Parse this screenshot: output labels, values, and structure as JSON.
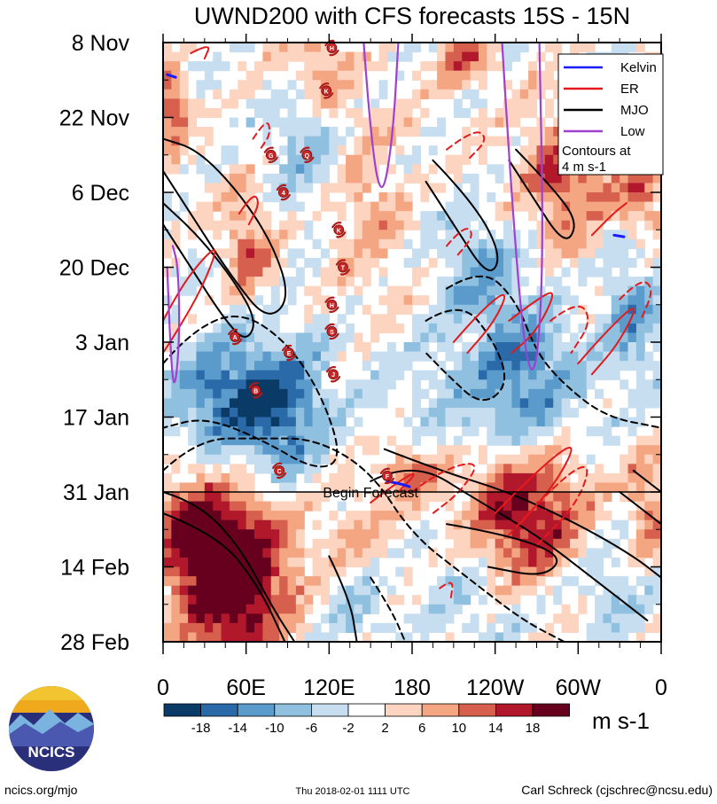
{
  "chart_data": {
    "type": "heatmap",
    "title": "UWND200 with CFS forecasts  15S - 15N",
    "x_tick_labels": [
      "0",
      "60E",
      "120E",
      "180",
      "120W",
      "60W",
      "0"
    ],
    "x_ticks_deg": [
      0,
      60,
      120,
      180,
      240,
      300,
      360
    ],
    "x_range_deg": [
      0,
      360
    ],
    "y_tick_labels": [
      "8 Nov",
      "22 Nov",
      "6 Dec",
      "20 Dec",
      "3 Jan",
      "17 Jan",
      "31 Jan",
      "14 Feb",
      "28 Feb"
    ],
    "y_range_days": [
      0,
      112
    ],
    "units": "m s-1",
    "colorbar_levels": [
      "-18",
      "-14",
      "-10",
      "-6",
      "-2",
      "2",
      "6",
      "10",
      "14",
      "18"
    ],
    "colorbar_colors": [
      "#0a3a66",
      "#2a6aa8",
      "#5b9bcc",
      "#8fc0e0",
      "#c6def0",
      "#ffffff",
      "#fcd4c0",
      "#f4a582",
      "#d6604d",
      "#b2182b",
      "#67001f"
    ],
    "forecast_start_day": 84,
    "forecast_label": "Begin Forecast",
    "legend": {
      "items": [
        {
          "name": "Kelvin",
          "color": "#1a1aff"
        },
        {
          "name": "ER",
          "color": "#e31a1c"
        },
        {
          "name": "MJO",
          "color": "#000000"
        },
        {
          "name": "Low",
          "color": "#a040d0"
        }
      ],
      "note_line1": "Contours at",
      "note_line2": "4 m s-1"
    },
    "anomaly_blobs": [
      {
        "lon": 5,
        "day": 12,
        "amp": 14,
        "slon": 10,
        "sday": 5
      },
      {
        "lon": 110,
        "day": 4,
        "amp": 10,
        "slon": 18,
        "sday": 6
      },
      {
        "lon": 220,
        "day": 3,
        "amp": 12,
        "slon": 14,
        "sday": 4
      },
      {
        "lon": 290,
        "day": 25,
        "amp": 14,
        "slon": 22,
        "sday": 9
      },
      {
        "lon": 345,
        "day": 28,
        "amp": 12,
        "slon": 12,
        "sday": 6
      },
      {
        "lon": 62,
        "day": 38,
        "amp": 10,
        "slon": 14,
        "sday": 8
      },
      {
        "lon": 150,
        "day": 30,
        "amp": 7,
        "slon": 20,
        "sday": 12
      },
      {
        "lon": 40,
        "day": 66,
        "amp": -14,
        "slon": 26,
        "sday": 8
      },
      {
        "lon": 85,
        "day": 68,
        "amp": -16,
        "slon": 22,
        "sday": 9
      },
      {
        "lon": 260,
        "day": 62,
        "amp": -14,
        "slon": 28,
        "sday": 9
      },
      {
        "lon": 230,
        "day": 42,
        "amp": -9,
        "slon": 22,
        "sday": 7
      },
      {
        "lon": 340,
        "day": 52,
        "amp": -10,
        "slon": 14,
        "sday": 10
      },
      {
        "lon": 100,
        "day": 18,
        "amp": -7,
        "slon": 18,
        "sday": 10
      },
      {
        "lon": 190,
        "day": 72,
        "amp": -5,
        "slon": 30,
        "sday": 10
      },
      {
        "lon": 25,
        "day": 92,
        "amp": 16,
        "slon": 26,
        "sday": 8
      },
      {
        "lon": 60,
        "day": 98,
        "amp": 18,
        "slon": 26,
        "sday": 9
      },
      {
        "lon": 45,
        "day": 108,
        "amp": 12,
        "slon": 22,
        "sday": 7
      },
      {
        "lon": 260,
        "day": 88,
        "amp": 20,
        "slon": 30,
        "sday": 8
      },
      {
        "lon": 180,
        "day": 80,
        "amp": 12,
        "slon": 20,
        "sday": 5
      },
      {
        "lon": 140,
        "day": 92,
        "amp": 6,
        "slon": 18,
        "sday": 6
      },
      {
        "lon": 350,
        "day": 86,
        "amp": 10,
        "slon": 12,
        "sday": 8
      },
      {
        "lon": 220,
        "day": 102,
        "amp": -5,
        "slon": 20,
        "sday": 8
      },
      {
        "lon": 325,
        "day": 100,
        "amp": -6,
        "slon": 16,
        "sday": 8
      },
      {
        "lon": 140,
        "day": 106,
        "amp": -5,
        "slon": 18,
        "sday": 6
      }
    ],
    "mjo_contours": [
      {
        "style": "solid",
        "points": [
          [
            0,
            24
          ],
          [
            20,
            32
          ],
          [
            50,
            44
          ],
          [
            75,
            52
          ],
          [
            92,
            48
          ],
          [
            80,
            38
          ],
          [
            55,
            28
          ],
          [
            25,
            20
          ],
          [
            0,
            18
          ]
        ]
      },
      {
        "style": "solid",
        "points": [
          [
            0,
            34
          ],
          [
            20,
            42
          ],
          [
            45,
            52
          ],
          [
            60,
            56
          ],
          [
            68,
            52
          ],
          [
            50,
            44
          ],
          [
            25,
            36
          ],
          [
            0,
            30
          ]
        ]
      },
      {
        "style": "dashed",
        "points": [
          [
            0,
            60
          ],
          [
            20,
            54
          ],
          [
            55,
            50
          ],
          [
            90,
            56
          ],
          [
            115,
            66
          ],
          [
            130,
            78
          ],
          [
            110,
            80
          ],
          [
            70,
            74
          ],
          [
            30,
            70
          ],
          [
            0,
            72
          ]
        ]
      },
      {
        "style": "dashed",
        "points": [
          [
            0,
            80
          ],
          [
            25,
            74
          ],
          [
            70,
            74
          ],
          [
            110,
            74
          ],
          [
            150,
            80
          ],
          [
            180,
            92
          ],
          [
            220,
            100
          ],
          [
            260,
            108
          ],
          [
            290,
            112
          ]
        ]
      },
      {
        "style": "solid",
        "points": [
          [
            0,
            84
          ],
          [
            25,
            86
          ],
          [
            55,
            94
          ],
          [
            80,
            106
          ],
          [
            95,
            112
          ]
        ]
      },
      {
        "style": "solid",
        "points": [
          [
            0,
            88
          ],
          [
            40,
            92
          ],
          [
            70,
            102
          ],
          [
            88,
            112
          ]
        ]
      },
      {
        "style": "solid",
        "points": [
          [
            290,
            16
          ],
          [
            330,
            20
          ],
          [
            360,
            24
          ]
        ]
      },
      {
        "style": "solid",
        "points": [
          [
            195,
            22
          ],
          [
            225,
            30
          ],
          [
            245,
            40
          ],
          [
            235,
            44
          ],
          [
            210,
            34
          ],
          [
            190,
            26
          ]
        ]
      },
      {
        "style": "solid",
        "points": [
          [
            255,
            20
          ],
          [
            285,
            28
          ],
          [
            300,
            34
          ],
          [
            290,
            38
          ],
          [
            265,
            28
          ],
          [
            250,
            22
          ]
        ]
      },
      {
        "style": "dashed",
        "points": [
          [
            205,
            46
          ],
          [
            230,
            42
          ],
          [
            255,
            48
          ],
          [
            270,
            58
          ],
          [
            290,
            64
          ],
          [
            320,
            70
          ],
          [
            360,
            72
          ]
        ]
      },
      {
        "style": "dashed",
        "points": [
          [
            190,
            52
          ],
          [
            215,
            48
          ],
          [
            240,
            56
          ],
          [
            250,
            64
          ],
          [
            230,
            68
          ],
          [
            205,
            62
          ],
          [
            190,
            58
          ]
        ]
      },
      {
        "style": "solid",
        "points": [
          [
            160,
            76
          ],
          [
            200,
            80
          ],
          [
            250,
            84
          ],
          [
            300,
            90
          ],
          [
            340,
            96
          ],
          [
            360,
            100
          ]
        ]
      },
      {
        "style": "solid",
        "points": [
          [
            150,
            82
          ],
          [
            180,
            78
          ],
          [
            230,
            86
          ],
          [
            270,
            92
          ],
          [
            310,
            100
          ],
          [
            350,
            108
          ]
        ]
      },
      {
        "style": "solid",
        "points": [
          [
            205,
            90
          ],
          [
            250,
            92
          ],
          [
            290,
            96
          ],
          [
            275,
            100
          ],
          [
            235,
            98
          ]
        ]
      },
      {
        "style": "solid",
        "points": [
          [
            120,
            96
          ],
          [
            135,
            104
          ],
          [
            140,
            112
          ]
        ]
      },
      {
        "style": "dashed",
        "points": [
          [
            150,
            100
          ],
          [
            165,
            106
          ],
          [
            175,
            112
          ]
        ]
      },
      {
        "style": "solid",
        "points": [
          [
            340,
            80
          ],
          [
            360,
            84
          ]
        ]
      },
      {
        "style": "solid",
        "points": [
          [
            330,
            84
          ],
          [
            360,
            90
          ]
        ]
      }
    ],
    "er_contours": [
      {
        "style": "solid",
        "points": [
          [
            0,
            52
          ],
          [
            12,
            46
          ],
          [
            30,
            40
          ],
          [
            40,
            38
          ],
          [
            28,
            46
          ],
          [
            10,
            54
          ],
          [
            0,
            58
          ]
        ]
      },
      {
        "style": "solid",
        "points": [
          [
            55,
            32
          ],
          [
            65,
            28
          ],
          [
            70,
            30
          ],
          [
            62,
            34
          ]
        ]
      },
      {
        "style": "dashed",
        "points": [
          [
            65,
            18
          ],
          [
            75,
            14
          ],
          [
            78,
            17
          ],
          [
            70,
            20
          ]
        ]
      },
      {
        "style": "solid",
        "points": [
          [
            150,
            86
          ],
          [
            170,
            82
          ],
          [
            185,
            80
          ],
          [
            170,
            84
          ]
        ]
      },
      {
        "style": "dashed",
        "points": [
          [
            180,
            84
          ],
          [
            200,
            80
          ],
          [
            230,
            78
          ],
          [
            215,
            84
          ],
          [
            195,
            88
          ]
        ]
      },
      {
        "style": "solid",
        "points": [
          [
            210,
            56
          ],
          [
            230,
            50
          ],
          [
            250,
            46
          ],
          [
            240,
            52
          ],
          [
            220,
            58
          ]
        ]
      },
      {
        "style": "solid",
        "points": [
          [
            250,
            52
          ],
          [
            270,
            48
          ],
          [
            285,
            46
          ],
          [
            270,
            54
          ],
          [
            252,
            58
          ]
        ]
      },
      {
        "style": "dashed",
        "points": [
          [
            280,
            52
          ],
          [
            300,
            48
          ],
          [
            310,
            52
          ],
          [
            295,
            58
          ]
        ]
      },
      {
        "style": "solid",
        "points": [
          [
            300,
            60
          ],
          [
            320,
            54
          ],
          [
            345,
            48
          ],
          [
            330,
            56
          ],
          [
            310,
            62
          ]
        ]
      },
      {
        "style": "dashed",
        "points": [
          [
            330,
            48
          ],
          [
            345,
            44
          ],
          [
            355,
            46
          ],
          [
            345,
            52
          ]
        ]
      },
      {
        "style": "solid",
        "points": [
          [
            240,
            88
          ],
          [
            270,
            80
          ],
          [
            300,
            74
          ],
          [
            285,
            82
          ],
          [
            258,
            90
          ]
        ]
      },
      {
        "style": "dashed",
        "points": [
          [
            250,
            92
          ],
          [
            285,
            82
          ],
          [
            310,
            78
          ],
          [
            300,
            86
          ],
          [
            270,
            94
          ]
        ]
      },
      {
        "style": "dashed",
        "points": [
          [
            205,
            20
          ],
          [
            225,
            16
          ],
          [
            235,
            18
          ],
          [
            220,
            22
          ]
        ]
      },
      {
        "style": "dashed",
        "points": [
          [
            305,
            24
          ],
          [
            320,
            20
          ],
          [
            318,
            24
          ]
        ]
      },
      {
        "style": "solid",
        "points": [
          [
            310,
            36
          ],
          [
            325,
            32
          ],
          [
            335,
            30
          ]
        ]
      },
      {
        "style": "dashed",
        "points": [
          [
            205,
            38
          ],
          [
            218,
            34
          ],
          [
            225,
            36
          ],
          [
            212,
            40
          ]
        ]
      },
      {
        "style": "dashed",
        "points": [
          [
            200,
            102
          ],
          [
            210,
            100
          ],
          [
            208,
            104
          ]
        ]
      },
      {
        "style": "solid",
        "points": [
          [
            20,
            2
          ],
          [
            35,
            0
          ],
          [
            30,
            3
          ]
        ]
      }
    ],
    "kelvin_segments": [
      {
        "points": [
          [
            3,
            6
          ],
          [
            9,
            6.5
          ]
        ]
      },
      {
        "points": [
          [
            326,
            36
          ],
          [
            333,
            36.3
          ]
        ]
      },
      {
        "points": [
          [
            162,
            82
          ],
          [
            172,
            82.5
          ],
          [
            178,
            83
          ]
        ]
      }
    ],
    "low_contours": [
      {
        "points": [
          [
            145,
            0
          ],
          [
            150,
            18
          ],
          [
            158,
            30
          ],
          [
            166,
            18
          ],
          [
            170,
            0
          ]
        ]
      },
      {
        "points": [
          [
            245,
            0
          ],
          [
            252,
            30
          ],
          [
            262,
            60
          ],
          [
            270,
            62
          ],
          [
            275,
            40
          ],
          [
            272,
            0
          ]
        ]
      },
      {
        "points": [
          [
            3,
            42
          ],
          [
            5,
            56
          ],
          [
            8,
            66
          ],
          [
            12,
            56
          ],
          [
            11,
            42
          ],
          [
            7,
            38
          ]
        ]
      }
    ],
    "storm_markers": [
      {
        "label": "H",
        "lon": 122,
        "day": 1
      },
      {
        "label": "K",
        "lon": 118,
        "day": 9
      },
      {
        "label": "G",
        "lon": 78,
        "day": 21
      },
      {
        "label": "Q",
        "lon": 104,
        "day": 21
      },
      {
        "label": "4",
        "lon": 87,
        "day": 28
      },
      {
        "label": "K",
        "lon": 127,
        "day": 35
      },
      {
        "label": "T",
        "lon": 130,
        "day": 42
      },
      {
        "label": "H",
        "lon": 122,
        "day": 49
      },
      {
        "label": "S",
        "lon": 122,
        "day": 54
      },
      {
        "label": "A",
        "lon": 52,
        "day": 55
      },
      {
        "label": "E",
        "lon": 91,
        "day": 58
      },
      {
        "label": "J",
        "lon": 123,
        "day": 62
      },
      {
        "label": "B",
        "lon": 67,
        "day": 65
      },
      {
        "label": "C",
        "lon": 84,
        "day": 80
      },
      {
        "label": "F",
        "lon": 162,
        "day": 81
      }
    ]
  },
  "footer": {
    "logo_text": "NCICS",
    "site": "ncics.org/mjo",
    "timestamp": "Thu 2018-02-01 1111 UTC",
    "credit": "Carl Schreck (cjschrec@ncsu.edu)"
  }
}
